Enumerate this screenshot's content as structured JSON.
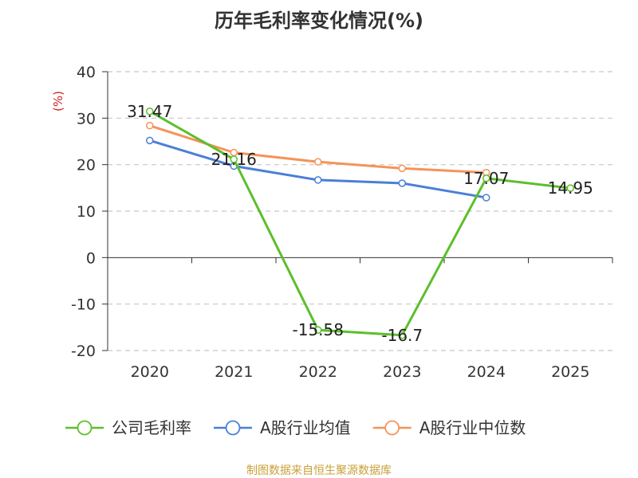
{
  "chart_data": {
    "type": "line",
    "title": "历年毛利率变化情况(%)",
    "ylabel": "(%)",
    "xlabel": "",
    "categories": [
      "2020",
      "2021",
      "2022",
      "2023",
      "2024",
      "2025"
    ],
    "ylim": [
      -20,
      40
    ],
    "yticks": [
      40,
      30,
      20,
      10,
      0,
      -10,
      -20
    ],
    "ytick_labels": [
      "40",
      "30",
      "20",
      "10",
      "0",
      "-10",
      "-20"
    ],
    "grid": true,
    "legend_position": "bottom",
    "series": [
      {
        "name": "公司毛利率",
        "color": "#5cbf2a",
        "values": [
          31.47,
          21.16,
          -15.58,
          -16.7,
          17.07,
          14.95
        ],
        "labels": [
          "31.47",
          "21.16",
          "-15.58",
          "-16.7",
          "17.07",
          "14.95"
        ]
      },
      {
        "name": "A股行业均值",
        "color": "#4a7fd6",
        "values": [
          25.2,
          19.7,
          16.7,
          16.0,
          12.9,
          null
        ]
      },
      {
        "name": "A股行业中位数",
        "color": "#f5935a",
        "values": [
          28.4,
          22.6,
          20.6,
          19.2,
          18.3,
          null
        ]
      }
    ]
  },
  "footer": {
    "source": "制图数据来自恒生聚源数据库",
    "source_color": "#c8a13a"
  }
}
